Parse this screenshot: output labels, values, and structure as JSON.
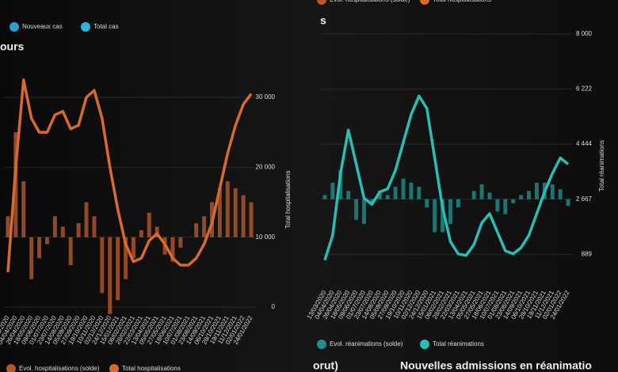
{
  "chart_data": [
    {
      "type": "combo",
      "title": "ours",
      "y_label": "Total hospitalisations",
      "other_legend": [
        {
          "name": "Nouveaux cas",
          "color": "#2a9fd6"
        },
        {
          "name": "Total cas",
          "color": "#2ab4e0"
        }
      ],
      "categories": [
        "13/03/2020",
        "04/04/2020",
        "26/04/2020",
        "18/05/2020",
        "09/06/2020",
        "01/07/2020",
        "23/07/2020",
        "14/08/2020",
        "05/09/2020",
        "27/09/2020",
        "19/10/2020",
        "10/11/2020",
        "02/12/2020",
        "24/12/2020",
        "15/01/2021",
        "06/02/2021",
        "28/02/2021",
        "22/03/2021",
        "13/04/2021",
        "05/05/2021",
        "27/05/2021",
        "18/06/2021",
        "10/07/2021",
        "01/08/2021",
        "23/08/2021",
        "14/09/2021",
        "06/10/2021",
        "28/10/2021",
        "19/11/2021",
        "11/12/2021",
        "02/01/2022",
        "24/01/2022"
      ],
      "series": [
        {
          "name": "Evol. hospitalisations (solde)",
          "type": "bar",
          "axis": "y2",
          "color": "#b5592a",
          "values": [
            300,
            1500,
            800,
            -600,
            -300,
            -100,
            300,
            150,
            -400,
            200,
            500,
            300,
            -800,
            -1100,
            -900,
            -600,
            -300,
            100,
            350,
            150,
            -250,
            -350,
            -150,
            0,
            200,
            300,
            500,
            700,
            800,
            700,
            600,
            500
          ]
        },
        {
          "name": "Total hospitalisations",
          "type": "line",
          "color": "#d9692c",
          "values": [
            5000,
            20000,
            32500,
            27000,
            25000,
            25000,
            27500,
            28000,
            25500,
            26000,
            30000,
            31000,
            27000,
            20000,
            14000,
            9000,
            6500,
            7000,
            9500,
            10500,
            9000,
            7000,
            6000,
            6000,
            7000,
            9000,
            12000,
            17000,
            22000,
            26000,
            29000,
            30500
          ]
        }
      ],
      "ylim": [
        0,
        33000
      ],
      "yticks": [
        0,
        {
          "value": 10000,
          "label": "10 000"
        },
        {
          "value": 20000,
          "label": "20 000"
        },
        {
          "value": 30000,
          "label": "30 000"
        }
      ],
      "y2lim": [
        -1000,
        2300
      ],
      "grid": true
    },
    {
      "type": "combo",
      "title": "s",
      "y_label": "Total réanimations",
      "other_legend": [
        {
          "name": "Evol. hospitalisations (solde)",
          "color": "#b5592a"
        },
        {
          "name": "Total hospitalisations",
          "color": "#d9692c"
        }
      ],
      "categories": [
        "13/03/2020",
        "04/04/2020",
        "26/04/2020",
        "18/05/2020",
        "09/06/2020",
        "01/07/2020",
        "23/07/2020",
        "14/08/2020",
        "05/09/2020",
        "27/09/2020",
        "19/10/2020",
        "10/11/2020",
        "02/12/2020",
        "24/12/2020",
        "15/01/2021",
        "06/02/2021",
        "28/02/2021",
        "22/03/2021",
        "13/04/2021",
        "05/05/2021",
        "27/05/2021",
        "18/06/2021",
        "10/07/2021",
        "01/08/2021",
        "23/08/2021",
        "14/09/2021",
        "06/10/2021",
        "28/10/2021",
        "19/11/2021",
        "11/12/2021",
        "02/01/2022",
        "24/01/2022"
      ],
      "series": [
        {
          "name": "Evol. réanimations (solde)",
          "type": "bar",
          "axis": "y2",
          "color": "#1e8f8a",
          "values": [
            50,
            200,
            350,
            100,
            -250,
            -300,
            -50,
            100,
            50,
            150,
            250,
            200,
            150,
            -100,
            -400,
            -400,
            -300,
            -100,
            0,
            100,
            180,
            80,
            -150,
            -180,
            -50,
            50,
            100,
            200,
            200,
            180,
            120,
            -80
          ]
        },
        {
          "name": "Total réanimations",
          "type": "line",
          "color": "#2bbdb5",
          "values": [
            700,
            1500,
            3500,
            4900,
            3800,
            2700,
            2500,
            2900,
            3000,
            3600,
            4500,
            5400,
            6000,
            5600,
            4000,
            2400,
            1300,
            900,
            850,
            1200,
            1900,
            2200,
            1600,
            1000,
            900,
            1100,
            1500,
            2200,
            2900,
            3500,
            4000,
            3800
          ]
        }
      ],
      "ylim": [
        0,
        8000
      ],
      "yticks": [
        889,
        {
          "value": 2667,
          "label": "2 667"
        },
        {
          "value": 4444,
          "label": "4 444"
        },
        {
          "value": 6222,
          "label": "6 222"
        },
        {
          "value": 8000,
          "label": "8 000"
        }
      ],
      "y2lim": [
        -1000,
        2000
      ],
      "grid": true
    }
  ],
  "footer": {
    "left_title": "orut)",
    "right_title": "Nouvelles admissions en réanimatio"
  }
}
